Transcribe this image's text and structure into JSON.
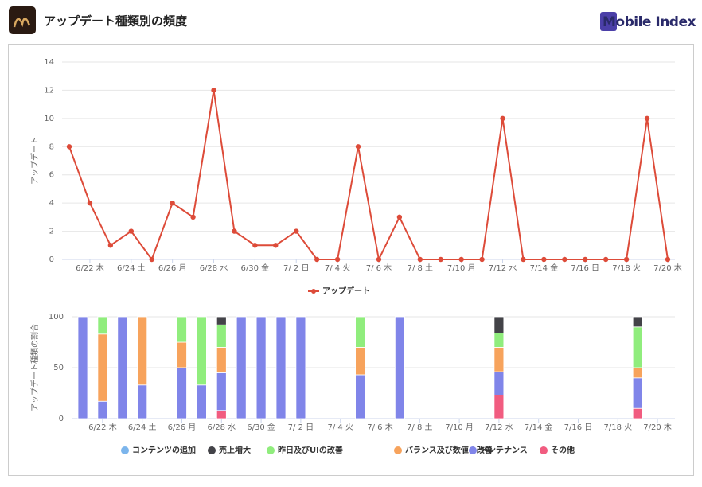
{
  "header": {
    "title": "アップデート種類別の頻度",
    "brand": "Mobile Index"
  },
  "chart_data": [
    {
      "type": "line",
      "ylabel": "アップデート",
      "categories": [
        null,
        "6/22 木",
        null,
        "6/24 土",
        null,
        "6/26 月",
        null,
        "6/28 水",
        null,
        "6/30 金",
        null,
        "7/ 2 日",
        null,
        "7/ 4 火",
        null,
        "7/ 6 木",
        null,
        "7/ 8 土",
        null,
        "7/10 月",
        null,
        "7/12 水",
        null,
        "7/14 金",
        null,
        "7/16 日",
        null,
        "7/18 火",
        null,
        "7/20 木"
      ],
      "series": [
        {
          "name": "アップデート",
          "color": "#dd4b39",
          "values": [
            8,
            4,
            1,
            2,
            0,
            4,
            3,
            12,
            2,
            1,
            1,
            2,
            0,
            0,
            8,
            0,
            3,
            0,
            0,
            0,
            0,
            10,
            0,
            0,
            0,
            0,
            0,
            0,
            10,
            0
          ]
        }
      ],
      "ylim": [
        0,
        14
      ],
      "yticks": [
        0,
        2,
        4,
        6,
        8,
        10,
        12,
        14
      ],
      "grid": true
    },
    {
      "type": "stacked_bar",
      "ylabel": "アップデート種類の割合",
      "categories": [
        null,
        "6/22 木",
        null,
        "6/24 土",
        null,
        "6/26 月",
        null,
        "6/28 水",
        null,
        "6/30 金",
        null,
        "7/ 2 日",
        null,
        "7/ 4 火",
        null,
        "7/ 6 木",
        null,
        "7/ 8 土",
        null,
        "7/10 月",
        null,
        "7/12 水",
        null,
        "7/14 金",
        null,
        "7/16 日",
        null,
        "7/18 火",
        null,
        "7/20 木"
      ],
      "series": [
        {
          "name": "その他",
          "color": "#f15c80",
          "values": [
            0,
            0,
            0,
            0,
            0,
            0,
            0,
            8,
            0,
            0,
            0,
            0,
            0,
            0,
            0,
            0,
            0,
            0,
            0,
            0,
            0,
            23,
            0,
            0,
            0,
            0,
            0,
            0,
            10,
            0
          ]
        },
        {
          "name": "メンテナンス",
          "color": "#8085e9",
          "values": [
            100,
            17,
            100,
            33,
            0,
            50,
            33,
            37,
            100,
            100,
            100,
            100,
            0,
            0,
            43,
            0,
            100,
            0,
            0,
            0,
            0,
            23,
            0,
            0,
            0,
            0,
            0,
            0,
            30,
            0
          ]
        },
        {
          "name": "バランス及び数値の改善",
          "color": "#f7a35c",
          "values": [
            0,
            66,
            0,
            67,
            0,
            25,
            0,
            25,
            0,
            0,
            0,
            0,
            0,
            0,
            27,
            0,
            0,
            0,
            0,
            0,
            0,
            24,
            0,
            0,
            0,
            0,
            0,
            0,
            10,
            0
          ]
        },
        {
          "name": "昨日及びUIの改善",
          "color": "#90ed7d",
          "values": [
            0,
            17,
            0,
            0,
            0,
            25,
            67,
            22,
            0,
            0,
            0,
            0,
            0,
            0,
            30,
            0,
            0,
            0,
            0,
            0,
            0,
            14,
            0,
            0,
            0,
            0,
            0,
            0,
            40,
            0
          ]
        },
        {
          "name": "売上増大",
          "color": "#434348",
          "values": [
            0,
            0,
            0,
            0,
            0,
            0,
            0,
            8,
            0,
            0,
            0,
            0,
            0,
            0,
            0,
            0,
            0,
            0,
            0,
            0,
            0,
            16,
            0,
            0,
            0,
            0,
            0,
            0,
            10,
            0
          ]
        },
        {
          "name": "コンテンツの追加",
          "color": "#7cb5ec",
          "values": [
            0,
            0,
            0,
            0,
            0,
            0,
            0,
            0,
            0,
            0,
            0,
            0,
            0,
            0,
            0,
            0,
            0,
            0,
            0,
            0,
            0,
            0,
            0,
            0,
            0,
            0,
            0,
            0,
            0,
            0
          ]
        }
      ],
      "legend_order": [
        5,
        4,
        3,
        2,
        1,
        0
      ],
      "ylim": [
        0,
        100
      ],
      "yticks": [
        0,
        50,
        100
      ],
      "grid": true
    }
  ]
}
